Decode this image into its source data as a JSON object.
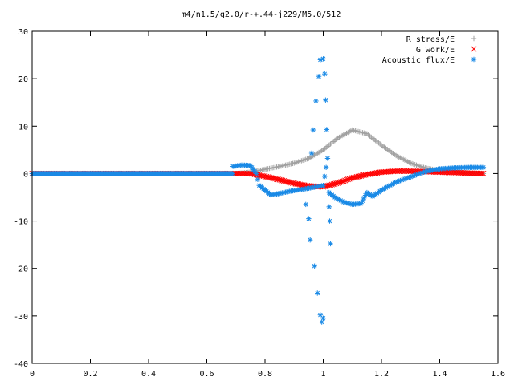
{
  "chart_data": {
    "type": "scatter",
    "title": "m4/n1.5/q2.0/r-+.44-j229/M5.0/512",
    "xlabel": "",
    "ylabel": "",
    "xlim": [
      0,
      1.6
    ],
    "ylim": [
      -40,
      30
    ],
    "xticks": [
      "0",
      "0.2",
      "0.4",
      "0.6",
      "0.8",
      "1",
      "1.2",
      "1.4",
      "1.6"
    ],
    "yticks": [
      "30",
      "20",
      "10",
      "0",
      "-10",
      "-20",
      "-30",
      "-40"
    ],
    "legend_position": "top-right",
    "grid": false,
    "series": [
      {
        "name": "R stress/E",
        "marker": "plus",
        "color": "#a0a0a0",
        "points": [
          [
            0.7,
            0.0
          ],
          [
            0.75,
            0.3
          ],
          [
            0.8,
            0.9
          ],
          [
            0.85,
            1.5
          ],
          [
            0.9,
            2.2
          ],
          [
            0.95,
            3.2
          ],
          [
            1.0,
            5.0
          ],
          [
            1.05,
            7.5
          ],
          [
            1.1,
            9.2
          ],
          [
            1.15,
            8.4
          ],
          [
            1.2,
            6.0
          ],
          [
            1.25,
            3.8
          ],
          [
            1.3,
            2.2
          ],
          [
            1.35,
            1.2
          ],
          [
            1.4,
            0.6
          ],
          [
            1.45,
            0.3
          ],
          [
            1.5,
            0.1
          ],
          [
            1.55,
            0.0
          ]
        ]
      },
      {
        "name": "G work/E",
        "marker": "cross",
        "color": "#ff0000",
        "points": [
          [
            0.7,
            0.0
          ],
          [
            0.75,
            0.0
          ],
          [
            0.8,
            -0.6
          ],
          [
            0.85,
            -1.3
          ],
          [
            0.9,
            -2.1
          ],
          [
            0.95,
            -2.6
          ],
          [
            1.0,
            -2.8
          ],
          [
            1.05,
            -2.0
          ],
          [
            1.1,
            -0.9
          ],
          [
            1.15,
            -0.2
          ],
          [
            1.2,
            0.3
          ],
          [
            1.25,
            0.5
          ],
          [
            1.3,
            0.5
          ],
          [
            1.35,
            0.4
          ],
          [
            1.4,
            0.3
          ],
          [
            1.45,
            0.2
          ],
          [
            1.5,
            0.1
          ],
          [
            1.55,
            0.0
          ]
        ]
      },
      {
        "name": "Acoustic flux/E",
        "marker": "star",
        "color": "#1a8ae6",
        "points": [
          [
            0.69,
            1.5
          ],
          [
            0.72,
            1.8
          ],
          [
            0.75,
            1.7
          ],
          [
            0.77,
            0.0
          ],
          [
            0.78,
            -2.5
          ],
          [
            0.8,
            -3.5
          ],
          [
            0.82,
            -4.5
          ],
          [
            0.85,
            -4.2
          ],
          [
            0.88,
            -3.8
          ],
          [
            0.92,
            -3.4
          ],
          [
            0.96,
            -3.0
          ],
          [
            1.0,
            -2.5
          ],
          [
            1.02,
            -4.0
          ],
          [
            1.04,
            -5.0
          ],
          [
            1.07,
            -6.0
          ],
          [
            1.1,
            -6.5
          ],
          [
            1.13,
            -6.3
          ],
          [
            1.15,
            -4.0
          ],
          [
            1.17,
            -4.8
          ],
          [
            1.2,
            -3.5
          ],
          [
            1.25,
            -1.8
          ],
          [
            1.3,
            -0.7
          ],
          [
            1.35,
            0.4
          ],
          [
            1.4,
            1.0
          ],
          [
            1.45,
            1.2
          ],
          [
            1.5,
            1.3
          ],
          [
            1.55,
            1.3
          ],
          [
            0.94,
            -6.5
          ],
          [
            0.95,
            -9.5
          ],
          [
            0.955,
            -14.0
          ],
          [
            0.96,
            4.3
          ],
          [
            0.965,
            9.2
          ],
          [
            0.97,
            -19.5
          ],
          [
            0.975,
            15.3
          ],
          [
            0.98,
            -25.2
          ],
          [
            0.985,
            20.5
          ],
          [
            0.99,
            24.0
          ],
          [
            0.99,
            -29.8
          ],
          [
            0.995,
            -31.3
          ],
          [
            1.0,
            24.2
          ],
          [
            1.0,
            -30.5
          ],
          [
            1.005,
            21.0
          ],
          [
            1.008,
            15.5
          ],
          [
            1.012,
            9.3
          ],
          [
            1.015,
            3.2
          ],
          [
            1.018,
            -1.0
          ],
          [
            1.02,
            -7.0
          ],
          [
            1.022,
            -10.0
          ],
          [
            1.025,
            -14.8
          ]
        ]
      }
    ]
  }
}
